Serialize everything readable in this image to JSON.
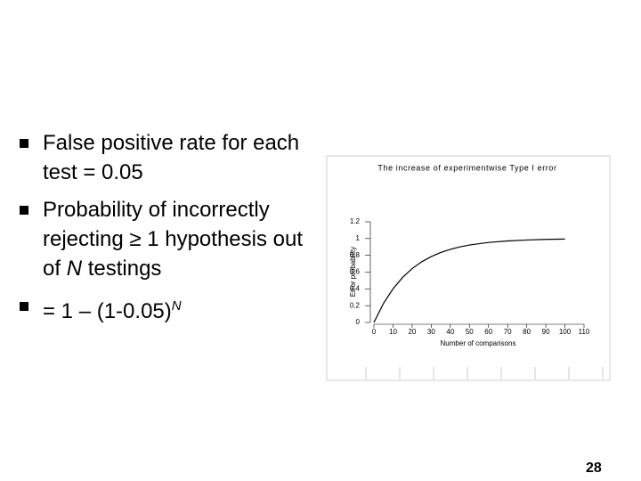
{
  "bullets": [
    {
      "parts": [
        "False positive rate for each test = 0.05"
      ]
    },
    {
      "parts": [
        "Probability of incorrectly rejecting ≥ 1 hypothesis out of ",
        "N",
        " testings"
      ]
    },
    {
      "parts": [
        "= 1 – (1-0.05)",
        "N"
      ]
    }
  ],
  "page_number": "28",
  "chart_data": {
    "type": "line",
    "title": "The increase of experimentwise Type I error",
    "x_label": "Number of comparisons",
    "y_label": "Error probability",
    "x": [
      0,
      5,
      10,
      15,
      20,
      25,
      30,
      35,
      40,
      45,
      50,
      60,
      70,
      80,
      90,
      100
    ],
    "values": [
      0,
      0.226,
      0.401,
      0.537,
      0.642,
      0.723,
      0.785,
      0.834,
      0.871,
      0.901,
      0.923,
      0.954,
      0.972,
      0.983,
      0.99,
      0.994
    ],
    "color": "#000000",
    "xlim": [
      0,
      110
    ],
    "xticks": [
      0,
      10,
      20,
      30,
      40,
      50,
      60,
      70,
      80,
      90,
      100,
      110
    ],
    "ylim": [
      0,
      1.2
    ],
    "yticks": [
      0,
      0.2,
      0.4,
      0.6,
      0.8,
      1,
      1.2
    ]
  }
}
